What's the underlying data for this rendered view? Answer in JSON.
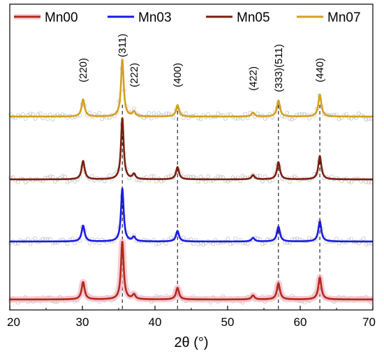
{
  "chart_data": {
    "type": "line",
    "xlabel": "2θ (°)",
    "ylabel": "",
    "xlim": [
      20,
      70
    ],
    "xticks": [
      20,
      30,
      40,
      50,
      60,
      70
    ],
    "yticks_shown": false,
    "grid": false,
    "legend_position": "top",
    "series": [
      {
        "name": "Mn00",
        "color": "#b22a1a",
        "offset": 0
      },
      {
        "name": "Mn03",
        "color": "#1a1ae6",
        "offset": 1
      },
      {
        "name": "Mn05",
        "color": "#7a1f10",
        "offset": 2
      },
      {
        "name": "Mn07",
        "color": "#d4a020",
        "offset": 3
      }
    ],
    "peaks": [
      {
        "label": "(220)",
        "two_theta": 30.1,
        "relative_intensity": 0.3
      },
      {
        "label": "(311)",
        "two_theta": 35.5,
        "relative_intensity": 1.0
      },
      {
        "label": "(222)",
        "two_theta": 37.1,
        "relative_intensity": 0.08
      },
      {
        "label": "(400)",
        "two_theta": 43.1,
        "relative_intensity": 0.2
      },
      {
        "label": "(422)",
        "two_theta": 53.5,
        "relative_intensity": 0.07
      },
      {
        "label": "(333)(511)",
        "two_theta": 57.0,
        "relative_intensity": 0.28
      },
      {
        "label": "(440)",
        "two_theta": 62.7,
        "relative_intensity": 0.38
      }
    ],
    "reference_lines_2theta": [
      35.5,
      43.1,
      57.0,
      62.7
    ]
  }
}
